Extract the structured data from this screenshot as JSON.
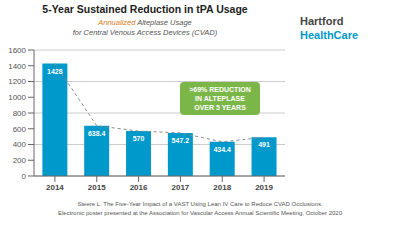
{
  "chart_data": {
    "type": "bar",
    "title": "5-Year Sustained Reduction in tPA Usage",
    "subtitle": [
      "Annualized Alteplase Usage",
      "for Central Venous Access Devices (CVAD)"
    ],
    "categories": [
      "2014",
      "2015",
      "2016",
      "2017",
      "2018",
      "2019"
    ],
    "series": [
      {
        "type": "bar",
        "color": "#0099CC",
        "data_labels": true,
        "values": [
          1428,
          638.4,
          570,
          547.2,
          434.4,
          491
        ]
      },
      {
        "type": "line",
        "color": "#888888",
        "line_style": "dashed",
        "values": [
          1428,
          638.4,
          570,
          547.2,
          434.4,
          491
        ]
      }
    ],
    "ylim": [
      0,
      1600
    ],
    "yticks": [
      0,
      200,
      400,
      600,
      800,
      1000,
      1200,
      1400,
      1600
    ],
    "grid": true,
    "annotations": [
      {
        "text": ">69% REDUCTION\nIN ALTEPLASE\nOVER 5 YEARS",
        "color": "#7ab648"
      }
    ],
    "logo": [
      {
        "text": "Hartford",
        "color": "#444444"
      },
      {
        "text": "HealthCare",
        "color": "#0099CC"
      }
    ],
    "footnotes": [
      "Steere L. The Five-Year Impact of a VAST Using Lean IV Care to Reduce CVAD Occlusions.",
      "Electronic poster presented at the Association for Vascular Access Annual Scientific Meeting, October 2020"
    ]
  }
}
